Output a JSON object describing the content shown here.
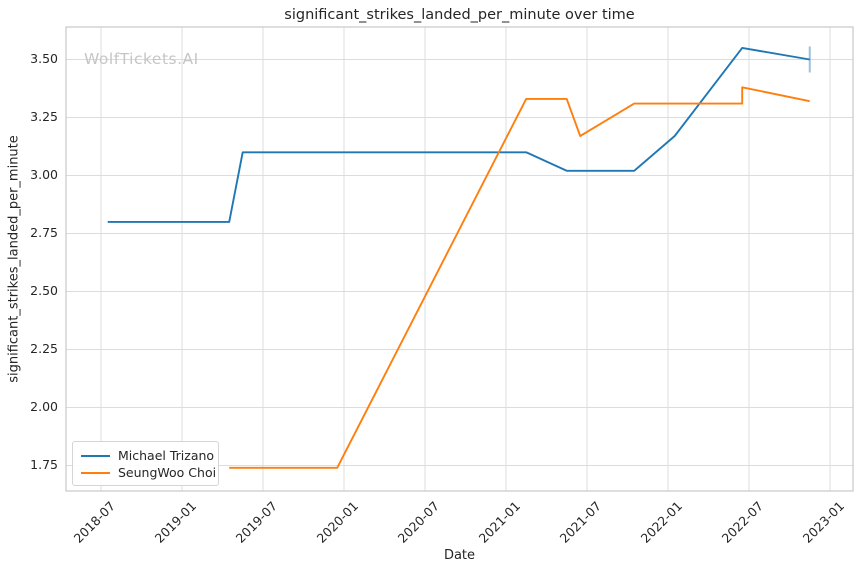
{
  "title": "significant_strikes_landed_per_minute over time",
  "watermark": "WolfTickets.AI",
  "axes": {
    "x_label": "Date",
    "y_label": "significant_strikes_landed_per_minute"
  },
  "legend": {
    "position": "lower left",
    "entries": [
      {
        "label": "Michael Trizano",
        "color": "#1f77b4"
      },
      {
        "label": "SeungWoo Choi",
        "color": "#ff7f0e"
      }
    ]
  },
  "colors": {
    "background": "#ffffff",
    "grid": "#dcdcdc",
    "spine": "#c9c9c9",
    "text": "#262626",
    "watermark": "#c6c6c6",
    "series_blue": "#1f77b4",
    "series_orange": "#ff7f0e",
    "end_marker": "rgba(31,119,180,0.45)"
  },
  "chart_data": {
    "type": "line",
    "title": "significant_strikes_landed_per_minute over time",
    "xlabel": "Date",
    "ylabel": "significant_strikes_landed_per_minute",
    "grid": true,
    "legend_position": "lower left",
    "x_tick_labels": [
      "2018-07",
      "2019-01",
      "2019-07",
      "2020-01",
      "2020-07",
      "2021-01",
      "2021-07",
      "2022-01",
      "2022-07",
      "2023-01"
    ],
    "y_ticks": [
      1.75,
      2.0,
      2.25,
      2.5,
      2.75,
      3.0,
      3.25,
      3.5
    ],
    "y_tick_labels": [
      "1.75",
      "2.00",
      "2.25",
      "2.50",
      "2.75",
      "3.00",
      "3.25",
      "3.50"
    ],
    "ylim": [
      1.64,
      3.64
    ],
    "xlim_decimal_years": [
      2018.284,
      2023.142
    ],
    "series": [
      {
        "name": "Michael Trizano",
        "color": "#1f77b4",
        "dates": [
          "2018-07",
          "2019-04",
          "2019-05",
          "2021-02",
          "2021-05",
          "2021-10",
          "2022-01",
          "2022-06",
          "2022-11"
        ],
        "values": [
          2.8,
          2.8,
          3.1,
          3.1,
          3.02,
          3.02,
          3.17,
          3.55,
          3.5
        ],
        "end_marker": "vertical-dash"
      },
      {
        "name": "SeungWoo Choi",
        "color": "#ff7f0e",
        "dates": [
          "2019-04",
          "2019-12",
          "2021-02",
          "2021-05",
          "2021-06",
          "2021-10",
          "2022-06",
          "2022-06",
          "2022-11"
        ],
        "values": [
          1.74,
          1.74,
          3.33,
          3.33,
          3.17,
          3.31,
          3.31,
          3.38,
          3.32
        ],
        "end_marker": null
      }
    ]
  }
}
